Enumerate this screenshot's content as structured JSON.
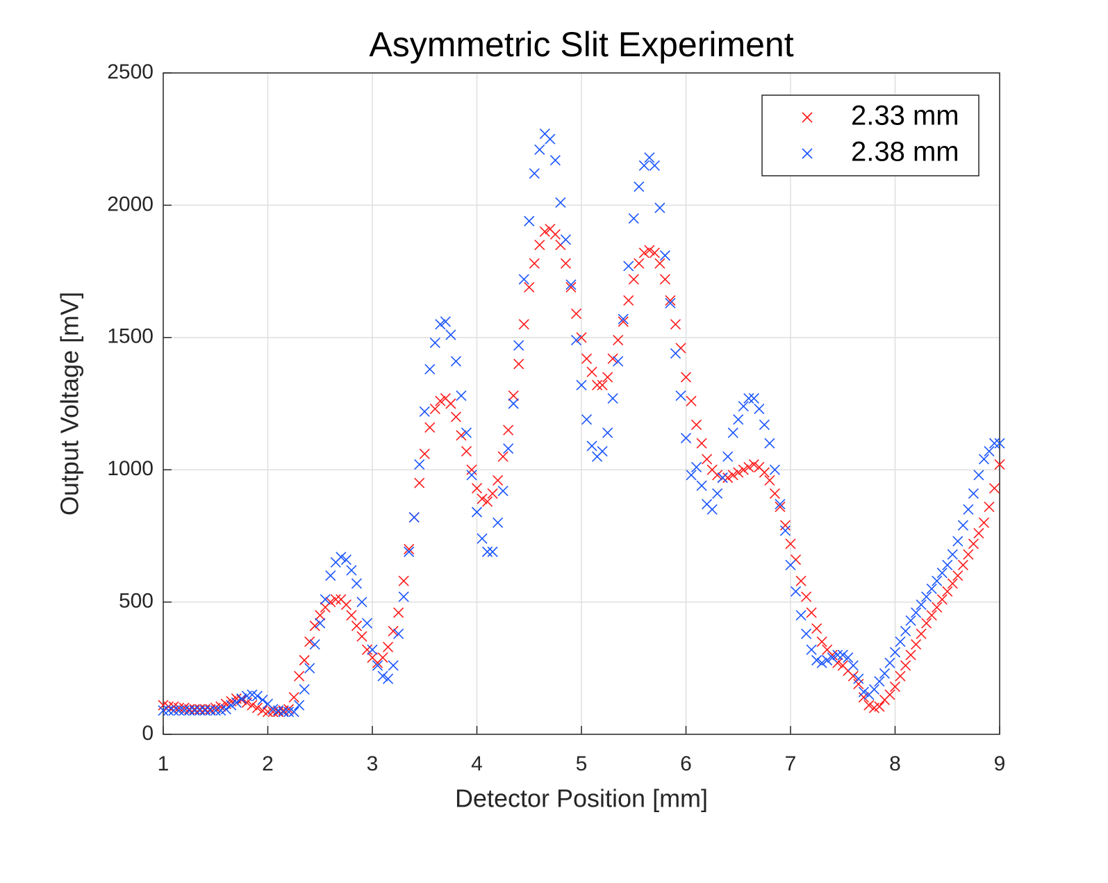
{
  "chart_data": {
    "type": "scatter",
    "title": "Asymmetric Slit Experiment",
    "x_label": "Detector Position [mm]",
    "y_label": "Output Voltage [mV]",
    "xlim": [
      1,
      9
    ],
    "xticks": [
      1,
      2,
      3,
      4,
      5,
      6,
      7,
      8,
      9
    ],
    "ylim": [
      0,
      2500
    ],
    "yticks": [
      0,
      500,
      1000,
      1500,
      2000,
      2500
    ],
    "grid": true,
    "legend": "upper right",
    "x": [
      1,
      1.05,
      1.1,
      1.15,
      1.2,
      1.25,
      1.3,
      1.35,
      1.4,
      1.45,
      1.5,
      1.55,
      1.6,
      1.65,
      1.7,
      1.75,
      1.8,
      1.85,
      1.9,
      1.95,
      2,
      2.05,
      2.1,
      2.15,
      2.2,
      2.25,
      2.3,
      2.35,
      2.4,
      2.45,
      2.5,
      2.55,
      2.6,
      2.65,
      2.7,
      2.75,
      2.8,
      2.85,
      2.9,
      2.95,
      3,
      3.05,
      3.1,
      3.15,
      3.2,
      3.25,
      3.3,
      3.35,
      3.4,
      3.45,
      3.5,
      3.55,
      3.6,
      3.65,
      3.7,
      3.75,
      3.8,
      3.85,
      3.9,
      3.95,
      4,
      4.05,
      4.1,
      4.15,
      4.2,
      4.25,
      4.3,
      4.35,
      4.4,
      4.45,
      4.5,
      4.55,
      4.6,
      4.65,
      4.7,
      4.75,
      4.8,
      4.85,
      4.9,
      4.95,
      5,
      5.05,
      5.1,
      5.15,
      5.2,
      5.25,
      5.3,
      5.35,
      5.4,
      5.45,
      5.5,
      5.55,
      5.6,
      5.65,
      5.7,
      5.75,
      5.8,
      5.85,
      5.9,
      5.95,
      6,
      6.05,
      6.1,
      6.15,
      6.2,
      6.25,
      6.3,
      6.35,
      6.4,
      6.45,
      6.5,
      6.55,
      6.6,
      6.65,
      6.7,
      6.75,
      6.8,
      6.85,
      6.9,
      6.95,
      7,
      7.05,
      7.1,
      7.15,
      7.2,
      7.25,
      7.3,
      7.35,
      7.4,
      7.45,
      7.5,
      7.55,
      7.6,
      7.65,
      7.7,
      7.75,
      7.8,
      7.85,
      7.9,
      7.95,
      8,
      8.05,
      8.1,
      8.15,
      8.2,
      8.25,
      8.3,
      8.35,
      8.4,
      8.45,
      8.5,
      8.55,
      8.6,
      8.65,
      8.7,
      8.75,
      8.8,
      8.85,
      8.9,
      8.95,
      9
    ],
    "series": [
      {
        "name": "2.33 mm",
        "color": "#ff1a1a",
        "values": [
          110,
          105,
          105,
          100,
          100,
          95,
          95,
          95,
          95,
          95,
          100,
          105,
          115,
          125,
          135,
          130,
          120,
          110,
          100,
          90,
          85,
          85,
          85,
          90,
          95,
          140,
          220,
          280,
          350,
          410,
          450,
          480,
          500,
          510,
          510,
          490,
          450,
          410,
          370,
          320,
          290,
          270,
          290,
          330,
          390,
          460,
          580,
          700,
          820,
          950,
          1060,
          1160,
          1230,
          1260,
          1270,
          1250,
          1200,
          1130,
          1070,
          1000,
          930,
          890,
          880,
          910,
          960,
          1050,
          1150,
          1280,
          1400,
          1550,
          1690,
          1780,
          1850,
          1900,
          1910,
          1890,
          1850,
          1780,
          1690,
          1590,
          1500,
          1420,
          1370,
          1320,
          1320,
          1350,
          1420,
          1490,
          1560,
          1640,
          1720,
          1780,
          1820,
          1830,
          1820,
          1780,
          1720,
          1640,
          1550,
          1460,
          1350,
          1260,
          1170,
          1100,
          1040,
          1000,
          980,
          970,
          970,
          980,
          990,
          1000,
          1010,
          1020,
          1010,
          990,
          960,
          910,
          860,
          790,
          720,
          660,
          580,
          520,
          460,
          400,
          350,
          320,
          300,
          270,
          260,
          240,
          220,
          190,
          140,
          110,
          100,
          105,
          130,
          150,
          180,
          220,
          260,
          300,
          340,
          380,
          420,
          450,
          480,
          510,
          540,
          570,
          600,
          640,
          680,
          720,
          760,
          800,
          860,
          930,
          1020
        ]
      },
      {
        "name": "2.38 mm",
        "color": "#1a55ff",
        "values": [
          90,
          90,
          90,
          90,
          90,
          90,
          90,
          90,
          90,
          90,
          90,
          90,
          95,
          110,
          120,
          135,
          145,
          150,
          145,
          130,
          115,
          95,
          90,
          85,
          85,
          85,
          110,
          170,
          250,
          340,
          420,
          510,
          600,
          650,
          670,
          660,
          620,
          570,
          500,
          420,
          320,
          260,
          220,
          210,
          260,
          380,
          520,
          690,
          820,
          1020,
          1220,
          1380,
          1480,
          1550,
          1560,
          1510,
          1410,
          1280,
          1140,
          980,
          840,
          740,
          690,
          690,
          800,
          920,
          1080,
          1250,
          1470,
          1720,
          1940,
          2120,
          2210,
          2270,
          2250,
          2170,
          2010,
          1870,
          1700,
          1490,
          1320,
          1190,
          1090,
          1050,
          1070,
          1140,
          1270,
          1410,
          1570,
          1770,
          1950,
          2070,
          2150,
          2180,
          2150,
          1990,
          1810,
          1630,
          1440,
          1280,
          1120,
          980,
          1010,
          940,
          870,
          850,
          910,
          970,
          1050,
          1140,
          1190,
          1240,
          1270,
          1270,
          1230,
          1170,
          1100,
          1000,
          870,
          770,
          640,
          540,
          450,
          380,
          320,
          280,
          270,
          280,
          290,
          300,
          300,
          290,
          260,
          210,
          160,
          150,
          170,
          200,
          230,
          270,
          310,
          350,
          390,
          430,
          460,
          490,
          520,
          550,
          580,
          610,
          640,
          680,
          730,
          790,
          850,
          910,
          980,
          1040,
          1070,
          1100,
          1100
        ]
      }
    ]
  }
}
